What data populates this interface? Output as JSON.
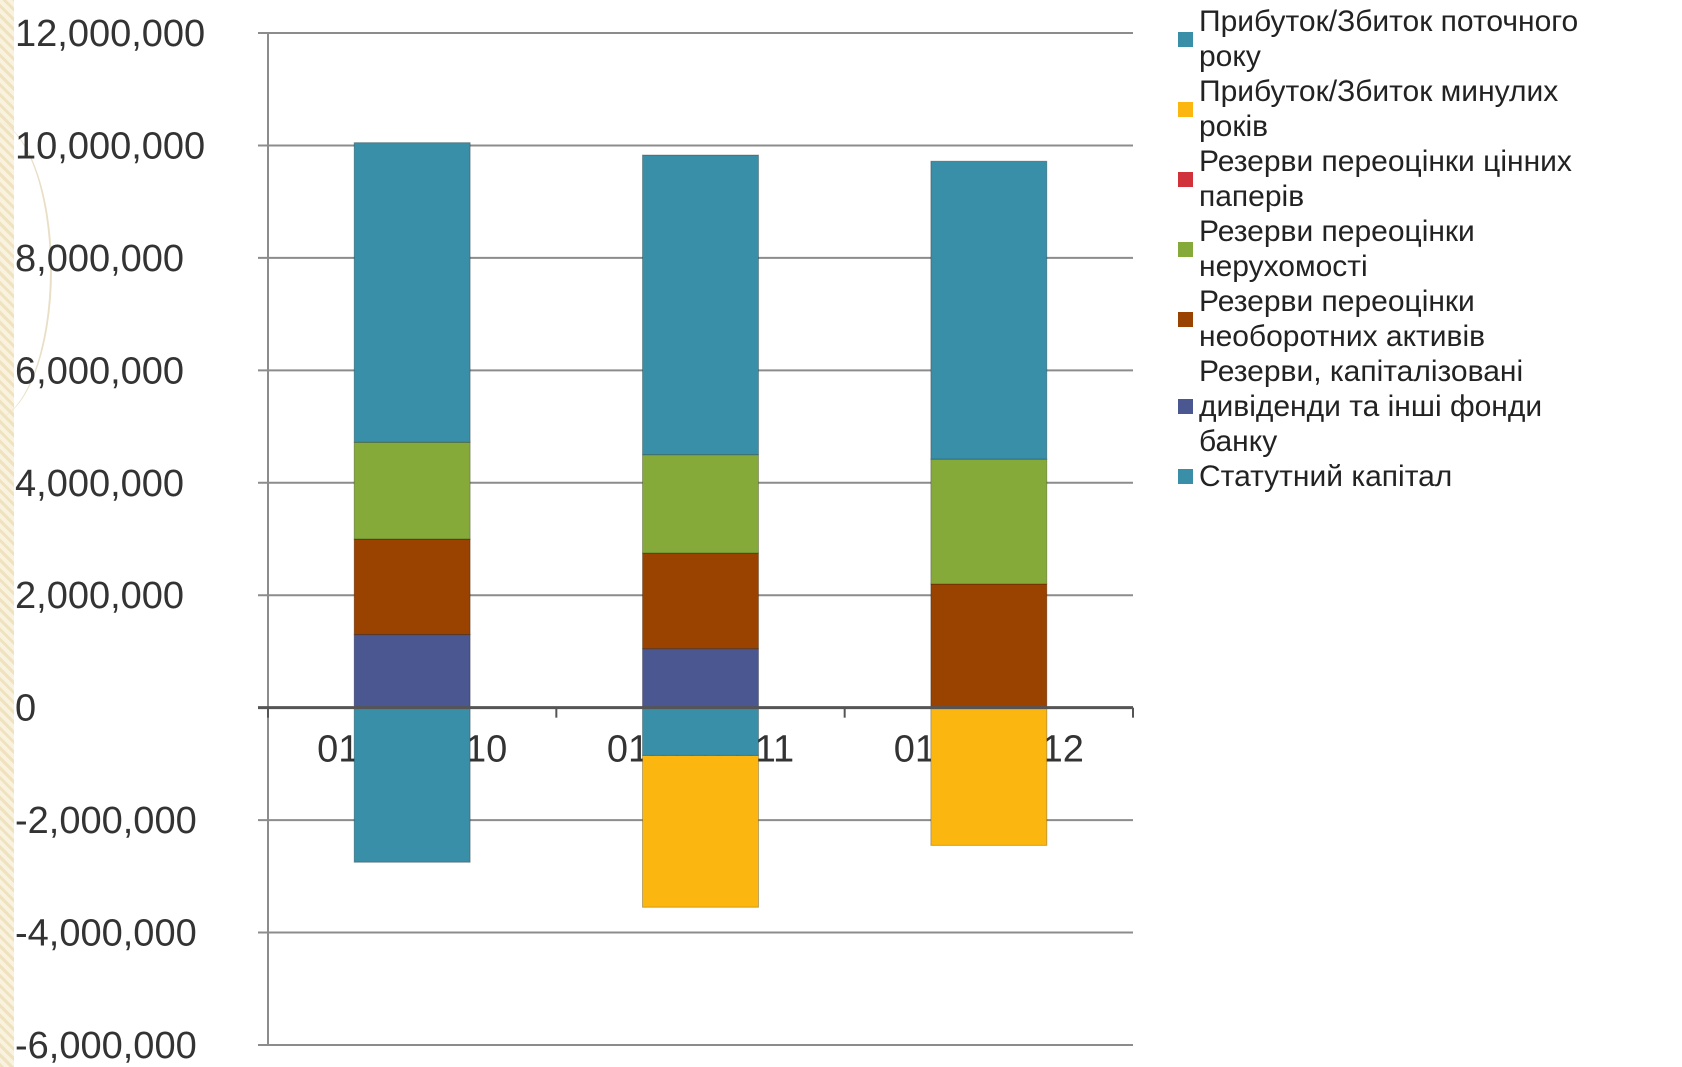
{
  "chart_data": {
    "type": "bar",
    "stacked": true,
    "categories": [
      "01/01/2010",
      "01/01/2011",
      "01/01/2012"
    ],
    "ylim": [
      -6000000,
      12000000
    ],
    "yticks": [
      12000000,
      10000000,
      8000000,
      6000000,
      4000000,
      2000000,
      0,
      -2000000,
      -4000000,
      -6000000
    ],
    "ytick_labels": [
      "12,000,000",
      "10,000,000",
      "8,000,000",
      "6,000,000",
      "4,000,000",
      "2,000,000",
      "0",
      "-2,000,000",
      "-4,000,000",
      "-6,000,000"
    ],
    "grid": true,
    "legend_position": "right",
    "series": [
      {
        "name": "Статутний капітал",
        "color": "#3a8fa8",
        "values": [
          -2750000,
          -850000,
          0
        ]
      },
      {
        "name": "Резерви, капіталізовані дивіденди та інші фонди банку",
        "color": "#4a5790",
        "values": [
          1300000,
          1050000,
          0
        ]
      },
      {
        "name": "Резерви переоцінки необоротних активів",
        "color": "#9a4200",
        "values": [
          1700000,
          1700000,
          2200000
        ]
      },
      {
        "name": "Резерви переоцінки нерухомості",
        "color": "#86aa3a",
        "values": [
          1720000,
          1750000,
          2220000
        ]
      },
      {
        "name": "Резерви переоцінки цінних паперів",
        "color": "#d0313a",
        "values": [
          0,
          0,
          0
        ]
      },
      {
        "name": "Прибуток/Збиток минулих років",
        "color": "#fbb710",
        "values": [
          0,
          -2700000,
          -2450000
        ]
      },
      {
        "name": "Прибуток/Збиток поточного року",
        "color": "#3a8fa8",
        "values": [
          5330000,
          5330000,
          5300000
        ]
      }
    ]
  },
  "legend": [
    {
      "lines": [
        "Прибуток/Збиток поточного",
        "року"
      ],
      "color": "#3a8fa8"
    },
    {
      "lines": [
        "Прибуток/Збиток минулих",
        "років"
      ],
      "color": "#fbb710"
    },
    {
      "lines": [
        "Резерви переоцінки цінних",
        "паперів"
      ],
      "color": "#d0313a"
    },
    {
      "lines": [
        "Резерви переоцінки",
        "нерухомості"
      ],
      "color": "#86aa3a"
    },
    {
      "lines": [
        "Резерви переоцінки",
        "необоротних активів"
      ],
      "color": "#9a4200"
    },
    {
      "lines": [
        "Резерви, капіталізовані",
        "дивіденди та інші фонди",
        "банку"
      ],
      "color": "#4a5790"
    },
    {
      "lines": [
        "Статутний капітал"
      ],
      "color": "#3a8fa8"
    }
  ]
}
